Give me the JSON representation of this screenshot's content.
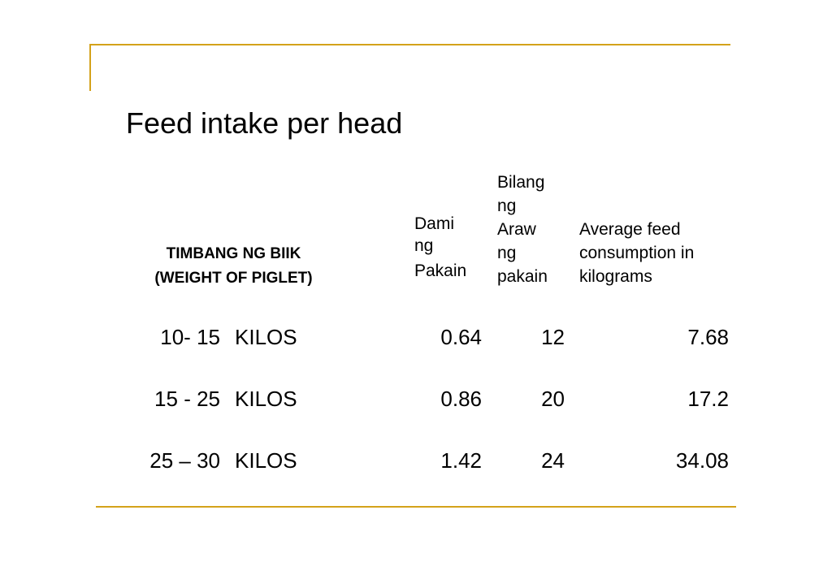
{
  "title": "Feed intake per head",
  "table": {
    "headers": {
      "weight": [
        "TIMBANG NG BIIK",
        "(WEIGHT OF PIGLET)"
      ],
      "dami": [
        "Dami",
        "ng",
        "Pakain"
      ],
      "bilang": [
        "Bilang",
        "ng",
        "Araw",
        "ng",
        "pakain"
      ],
      "average": [
        "Average feed",
        "consumption in",
        "kilograms"
      ]
    },
    "rows": [
      {
        "range": "10- 15",
        "unit": "KILOS",
        "dami": "0.64",
        "days": "12",
        "average": "7.68"
      },
      {
        "range": "15 - 25",
        "unit": "KILOS",
        "dami": "0.86",
        "days": "20",
        "average": "17.2"
      },
      {
        "range": "25 – 30",
        "unit": "KILOS",
        "dami": "1.42",
        "days": "24",
        "average": "34.08"
      }
    ]
  },
  "colors": {
    "accent_line": "#d4a21a",
    "text": "#000000",
    "background": "#ffffff"
  }
}
